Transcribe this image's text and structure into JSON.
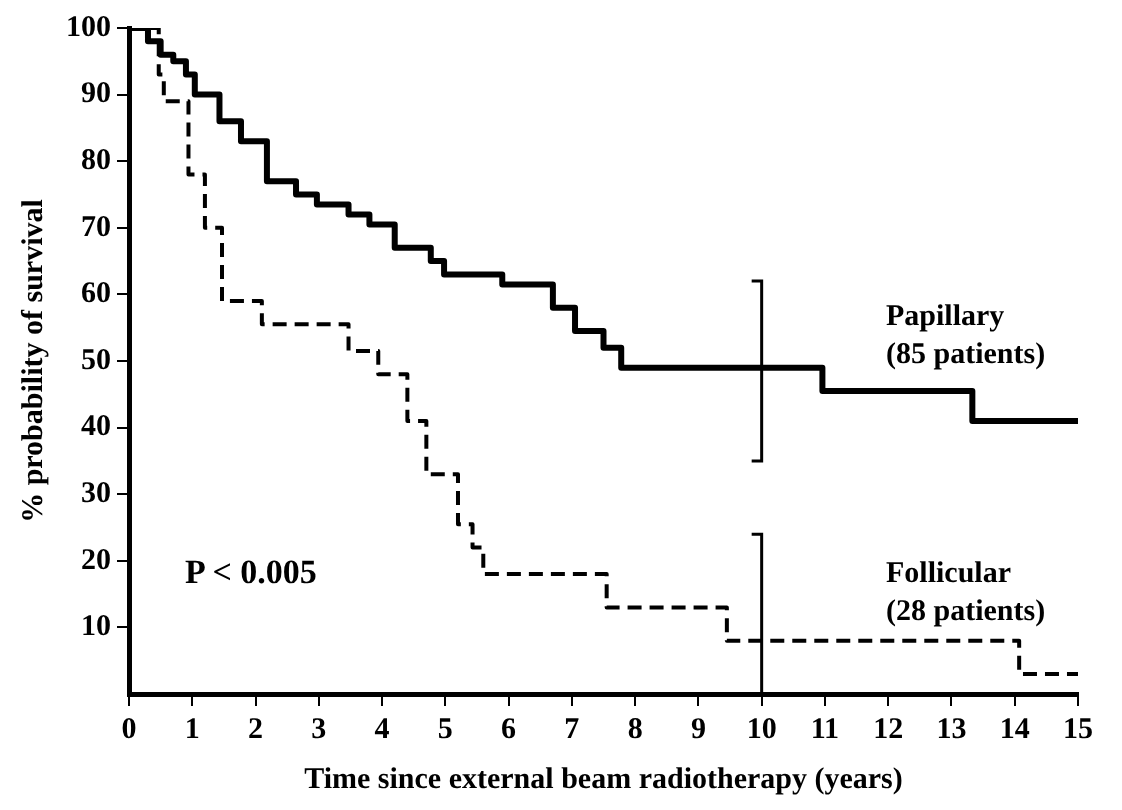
{
  "chart_data": {
    "type": "step",
    "xlabel": "Time since external beam radiotherapy (years)",
    "ylabel": "% probability of survival",
    "xlim": [
      0,
      15
    ],
    "xticks": [
      0,
      1,
      2,
      3,
      4,
      5,
      6,
      7,
      8,
      9,
      10,
      11,
      12,
      13,
      14,
      15
    ],
    "ylim": [
      0,
      100
    ],
    "yticks": [
      10,
      20,
      30,
      40,
      50,
      60,
      70,
      80,
      90,
      100
    ],
    "grid": false,
    "legend": false,
    "marker": "none",
    "annotations": [
      "P < 0.005"
    ],
    "series": [
      {
        "name": "Papillary (85 patients)",
        "color": "#000000",
        "line_style": "solid",
        "x": [
          0,
          0.3,
          0.5,
          0.7,
          0.9,
          1.04,
          1.43,
          1.77,
          2.18,
          2.64,
          2.97,
          3.47,
          3.8,
          4.2,
          4.77,
          4.98,
          5.9,
          6.7,
          7.05,
          7.5,
          7.78,
          10,
          10.96,
          13.33,
          15
        ],
        "values": [
          100,
          98,
          96,
          95,
          93,
          90,
          86,
          83,
          77,
          75,
          73.5,
          72,
          70.5,
          67,
          65,
          63,
          61.5,
          58,
          54.5,
          52,
          49,
          49,
          45.5,
          41,
          41
        ],
        "errors": [
          null,
          null,
          null,
          null,
          null,
          null,
          null,
          null,
          null,
          null,
          null,
          null,
          null,
          null,
          null,
          null,
          null,
          null,
          null,
          null,
          null,
          [
            35,
            62
          ],
          null,
          null,
          null
        ]
      },
      {
        "name": "Follicular (28 patients)",
        "color": "#000000",
        "line_style": "dashed",
        "x": [
          0,
          0.47,
          0.55,
          0.94,
          1.2,
          1.47,
          2.1,
          3.47,
          3.94,
          4.4,
          4.7,
          5.2,
          5.43,
          5.6,
          7.55,
          9.45,
          10,
          14.07,
          15
        ],
        "values": [
          100,
          93,
          89,
          78,
          70,
          59,
          55.5,
          51.5,
          48,
          41,
          33,
          25.5,
          22,
          18,
          13,
          8,
          8,
          3,
          3
        ],
        "errors": [
          null,
          null,
          null,
          null,
          null,
          null,
          null,
          null,
          null,
          null,
          null,
          null,
          null,
          null,
          null,
          null,
          [
            0,
            24
          ],
          null,
          null
        ]
      }
    ]
  }
}
